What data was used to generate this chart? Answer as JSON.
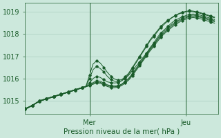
{
  "title": "",
  "xlabel": "Pression niveau de la mer( hPa )",
  "ylabel": "",
  "bg_color": "#cce8dc",
  "line_color": "#1a5c2a",
  "grid_color": "#aacebe",
  "tick_color": "#1a5c2a",
  "label_color": "#1a5c2a",
  "ylim": [
    1014.4,
    1019.4
  ],
  "xlim": [
    0,
    54
  ],
  "yticks": [
    1015,
    1016,
    1017,
    1018,
    1019
  ],
  "xtick_positions": [
    18,
    45
  ],
  "xtick_labels": [
    "Mer",
    "Jeu"
  ],
  "vline_positions": [
    18,
    45
  ],
  "series": [
    [
      1014.65,
      1014.72,
      1014.8,
      1014.9,
      1015.0,
      1015.05,
      1015.1,
      1015.15,
      1015.2,
      1015.25,
      1015.3,
      1015.35,
      1015.4,
      1015.45,
      1015.5,
      1015.55,
      1015.6,
      1015.65,
      1015.8,
      1016.0,
      1016.1,
      1016.05,
      1015.95,
      1015.85,
      1015.82,
      1015.8,
      1015.82,
      1015.9,
      1016.0,
      1016.15,
      1016.35,
      1016.55,
      1016.75,
      1016.95,
      1017.15,
      1017.4,
      1017.6,
      1017.85,
      1018.05,
      1018.2,
      1018.35,
      1018.5,
      1018.62,
      1018.7,
      1018.78,
      1018.83,
      1018.88,
      1018.9,
      1018.88,
      1018.85,
      1018.8,
      1018.75,
      1018.7,
      1018.65
    ],
    [
      1014.65,
      1014.72,
      1014.8,
      1014.9,
      1015.0,
      1015.05,
      1015.1,
      1015.15,
      1015.2,
      1015.25,
      1015.3,
      1015.35,
      1015.4,
      1015.45,
      1015.5,
      1015.55,
      1015.6,
      1015.65,
      1016.0,
      1016.4,
      1016.55,
      1016.45,
      1016.3,
      1016.1,
      1015.95,
      1015.88,
      1015.85,
      1015.9,
      1016.05,
      1016.2,
      1016.45,
      1016.7,
      1016.95,
      1017.2,
      1017.45,
      1017.7,
      1017.9,
      1018.1,
      1018.3,
      1018.45,
      1018.6,
      1018.72,
      1018.82,
      1018.9,
      1018.96,
      1019.0,
      1019.02,
      1019.0,
      1018.97,
      1018.93,
      1018.88,
      1018.83,
      1018.78,
      1018.73
    ],
    [
      1014.65,
      1014.72,
      1014.8,
      1014.9,
      1015.0,
      1015.05,
      1015.1,
      1015.15,
      1015.2,
      1015.25,
      1015.3,
      1015.35,
      1015.4,
      1015.45,
      1015.5,
      1015.55,
      1015.6,
      1015.65,
      1016.15,
      1016.65,
      1016.8,
      1016.7,
      1016.5,
      1016.28,
      1016.1,
      1015.98,
      1015.92,
      1015.95,
      1016.08,
      1016.25,
      1016.5,
      1016.75,
      1017.0,
      1017.25,
      1017.5,
      1017.75,
      1017.95,
      1018.15,
      1018.35,
      1018.5,
      1018.62,
      1018.74,
      1018.84,
      1018.92,
      1018.98,
      1019.02,
      1019.05,
      1019.03,
      1019.0,
      1018.96,
      1018.91,
      1018.86,
      1018.81,
      1018.76
    ],
    [
      1014.62,
      1014.7,
      1014.78,
      1014.88,
      1014.98,
      1015.03,
      1015.08,
      1015.13,
      1015.18,
      1015.23,
      1015.28,
      1015.33,
      1015.38,
      1015.43,
      1015.48,
      1015.53,
      1015.58,
      1015.63,
      1015.72,
      1015.82,
      1015.9,
      1015.88,
      1015.8,
      1015.72,
      1015.68,
      1015.67,
      1015.68,
      1015.75,
      1015.88,
      1016.02,
      1016.22,
      1016.45,
      1016.67,
      1016.9,
      1017.12,
      1017.35,
      1017.55,
      1017.78,
      1017.98,
      1018.14,
      1018.28,
      1018.42,
      1018.54,
      1018.63,
      1018.72,
      1018.78,
      1018.83,
      1018.85,
      1018.83,
      1018.8,
      1018.75,
      1018.7,
      1018.65,
      1018.6
    ],
    [
      1014.62,
      1014.7,
      1014.78,
      1014.88,
      1014.98,
      1015.03,
      1015.08,
      1015.13,
      1015.18,
      1015.23,
      1015.28,
      1015.33,
      1015.38,
      1015.43,
      1015.48,
      1015.53,
      1015.58,
      1015.63,
      1015.7,
      1015.78,
      1015.85,
      1015.83,
      1015.76,
      1015.68,
      1015.64,
      1015.63,
      1015.65,
      1015.72,
      1015.85,
      1015.98,
      1016.18,
      1016.4,
      1016.63,
      1016.85,
      1017.07,
      1017.3,
      1017.5,
      1017.72,
      1017.92,
      1018.08,
      1018.22,
      1018.36,
      1018.48,
      1018.58,
      1018.67,
      1018.73,
      1018.78,
      1018.8,
      1018.78,
      1018.75,
      1018.7,
      1018.65,
      1018.6,
      1018.55
    ],
    [
      1014.62,
      1014.7,
      1014.78,
      1014.88,
      1014.98,
      1015.03,
      1015.08,
      1015.13,
      1015.18,
      1015.23,
      1015.28,
      1015.33,
      1015.38,
      1015.43,
      1015.48,
      1015.53,
      1015.58,
      1015.63,
      1015.68,
      1015.74,
      1015.8,
      1015.78,
      1015.72,
      1015.64,
      1015.6,
      1015.59,
      1015.61,
      1015.68,
      1015.8,
      1015.93,
      1016.13,
      1016.35,
      1016.57,
      1016.8,
      1017.02,
      1017.25,
      1017.44,
      1017.66,
      1017.86,
      1018.02,
      1018.16,
      1018.3,
      1018.42,
      1018.52,
      1018.61,
      1018.67,
      1018.72,
      1018.74,
      1018.72,
      1018.69,
      1018.64,
      1018.59,
      1018.54,
      1018.49
    ]
  ]
}
